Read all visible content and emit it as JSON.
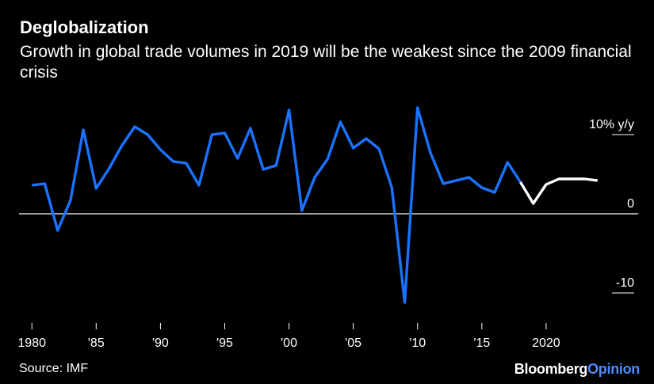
{
  "header": {
    "title": "Deglobalization",
    "subtitle": "Growth in global trade volumes in 2019 will be the weakest since the 2009 financial crisis"
  },
  "footer": {
    "source": "Source: IMF",
    "brand_main": "Bloomberg",
    "brand_accent": "Opinion"
  },
  "colors": {
    "background": "#000000",
    "actual": "#1a73ff",
    "forecast": "#ffffff",
    "zero_line": "#ffffff",
    "text": "#ffffff",
    "brand_accent": "#4d8cff"
  },
  "chart_data": {
    "type": "line",
    "unit_label": "10% y/y",
    "ylim": [
      -13,
      15
    ],
    "xlim": [
      1979,
      2025
    ],
    "y_ticks": [
      {
        "value": 10,
        "label": "10% y/y"
      },
      {
        "value": 0,
        "label": "0"
      },
      {
        "value": -10,
        "label": "-10"
      }
    ],
    "x_ticks": [
      {
        "value": 1980,
        "label": "1980"
      },
      {
        "value": 1985,
        "label": "'85"
      },
      {
        "value": 1990,
        "label": "'90"
      },
      {
        "value": 1995,
        "label": "'95"
      },
      {
        "value": 2000,
        "label": "'00"
      },
      {
        "value": 2005,
        "label": "'05"
      },
      {
        "value": 2010,
        "label": "'10"
      },
      {
        "value": 2015,
        "label": "'15"
      },
      {
        "value": 2020,
        "label": "2020"
      }
    ],
    "grid": false,
    "series": [
      {
        "x": [
          1980,
          1981,
          1982,
          1983,
          1984,
          1985,
          1986,
          1987,
          1988,
          1989,
          1990,
          1991,
          1992,
          1993,
          1994,
          1995,
          1996,
          1997,
          1998,
          1999,
          2000,
          2001,
          2002,
          2003,
          2004,
          2005,
          2006,
          2007,
          2008,
          2009,
          2010,
          2011,
          2012,
          2013,
          2014,
          2015,
          2016,
          2017,
          2018
        ],
        "values": [
          3.6,
          3.8,
          -2.1,
          1.7,
          10.6,
          3.2,
          5.7,
          8.6,
          11.0,
          10.0,
          8.1,
          6.6,
          6.4,
          3.6,
          10.0,
          10.2,
          7.0,
          10.8,
          5.6,
          6.1,
          13.1,
          0.4,
          4.6,
          6.9,
          11.6,
          8.3,
          9.5,
          8.2,
          3.3,
          -11.2,
          13.4,
          7.7,
          3.8,
          4.2,
          4.6,
          3.3,
          2.7,
          6.5,
          4.0
        ]
      },
      {
        "x": [
          2018,
          2019,
          2020,
          2021,
          2022,
          2023,
          2024
        ],
        "values": [
          4.0,
          1.3,
          3.7,
          4.4,
          4.4,
          4.4,
          4.2
        ]
      }
    ]
  }
}
